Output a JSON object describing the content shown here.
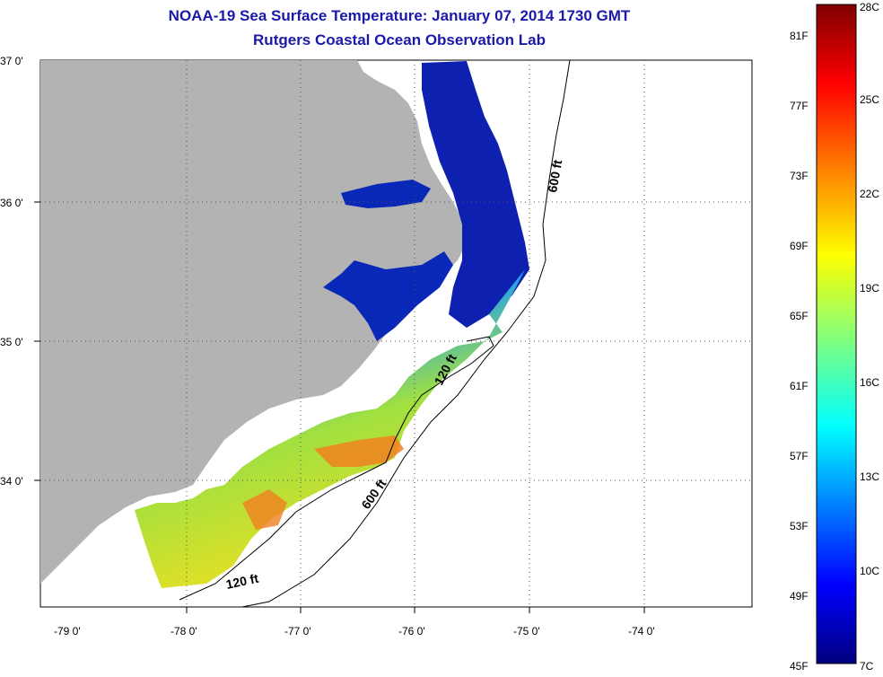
{
  "title_line1": "NOAA-19 Sea Surface Temperature:  January 07, 2014 1730 GMT",
  "title_line2": "Rutgers Coastal Ocean Observation Lab",
  "map": {
    "lat_labels": [
      "37 0'",
      "36 0'",
      "35 0'",
      "34 0'"
    ],
    "lon_labels": [
      "-79 0'",
      "-78 0'",
      "-77 0'",
      "-76 0'",
      "-75 0'",
      "-74 0'"
    ],
    "contours": [
      {
        "label": "600 ft",
        "depth_ft": 600
      },
      {
        "label": "120 ft",
        "depth_ft": 120
      }
    ],
    "colors": {
      "land": "#b3b3b3",
      "ocean_nodata": "#ffffff",
      "cold": "#0a1aa0",
      "warm": "#e8501a"
    }
  },
  "colorbar": {
    "fahrenheit_labels": [
      "81F",
      "77F",
      "73F",
      "69F",
      "65F",
      "61F",
      "57F",
      "53F",
      "49F",
      "45F"
    ],
    "celsius_labels": [
      "28C",
      "25C",
      "22C",
      "19C",
      "16C",
      "13C",
      "10C",
      "7C"
    ],
    "min_c": 7,
    "max_c": 28
  }
}
